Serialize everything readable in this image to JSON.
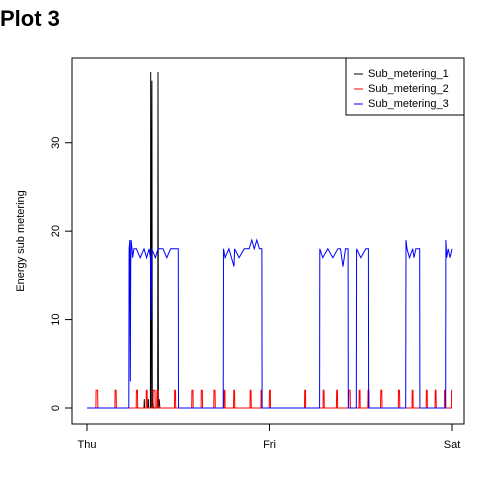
{
  "title": "Plot 3",
  "chart_data": {
    "type": "line",
    "ylabel": "Energy sub metering",
    "xlabel": "",
    "x_range": [
      0,
      2880
    ],
    "ylim": [
      0,
      38
    ],
    "x_ticks": [
      {
        "value": 0,
        "label": "Thu"
      },
      {
        "value": 1440,
        "label": "Fri"
      },
      {
        "value": 2880,
        "label": "Sat"
      }
    ],
    "y_ticks": [
      0,
      10,
      20,
      30
    ],
    "legend": {
      "position": "top-right"
    },
    "series": [
      {
        "name": "Sub_metering_1",
        "color": "#000000",
        "points": [
          [
            0,
            0
          ],
          [
            450,
            0
          ],
          [
            452,
            1
          ],
          [
            454,
            0
          ],
          [
            480,
            0
          ],
          [
            484,
            1
          ],
          [
            486,
            0
          ],
          [
            500,
            0
          ],
          [
            503,
            38
          ],
          [
            506,
            0
          ],
          [
            512,
            37
          ],
          [
            515,
            0
          ],
          [
            520,
            1
          ],
          [
            524,
            0
          ],
          [
            552,
            0
          ],
          [
            556,
            1
          ],
          [
            558,
            2
          ],
          [
            560,
            38
          ],
          [
            563,
            0
          ],
          [
            570,
            1
          ],
          [
            575,
            0
          ],
          [
            2880,
            0
          ]
        ]
      },
      {
        "name": "Sub_metering_2",
        "color": "#ff0000",
        "points": [
          [
            0,
            0
          ],
          [
            70,
            0
          ],
          [
            72,
            2
          ],
          [
            84,
            2
          ],
          [
            86,
            0
          ],
          [
            220,
            0
          ],
          [
            222,
            2
          ],
          [
            230,
            2
          ],
          [
            232,
            0
          ],
          [
            388,
            0
          ],
          [
            390,
            2
          ],
          [
            398,
            2
          ],
          [
            400,
            0
          ],
          [
            466,
            0
          ],
          [
            468,
            2
          ],
          [
            474,
            2
          ],
          [
            476,
            0
          ],
          [
            520,
            0
          ],
          [
            522,
            2
          ],
          [
            536,
            2
          ],
          [
            538,
            0
          ],
          [
            550,
            0
          ],
          [
            552,
            2
          ],
          [
            560,
            2
          ],
          [
            562,
            0
          ],
          [
            690,
            0
          ],
          [
            692,
            2
          ],
          [
            698,
            2
          ],
          [
            700,
            0
          ],
          [
            826,
            0
          ],
          [
            828,
            2
          ],
          [
            836,
            2
          ],
          [
            838,
            0
          ],
          [
            900,
            0
          ],
          [
            902,
            2
          ],
          [
            910,
            2
          ],
          [
            912,
            0
          ],
          [
            1000,
            0
          ],
          [
            1002,
            2
          ],
          [
            1010,
            2
          ],
          [
            1012,
            0
          ],
          [
            1080,
            0
          ],
          [
            1082,
            2
          ],
          [
            1088,
            2
          ],
          [
            1090,
            0
          ],
          [
            1156,
            0
          ],
          [
            1158,
            2
          ],
          [
            1164,
            2
          ],
          [
            1166,
            0
          ],
          [
            1286,
            0
          ],
          [
            1288,
            2
          ],
          [
            1294,
            2
          ],
          [
            1296,
            0
          ],
          [
            1372,
            0
          ],
          [
            1374,
            2
          ],
          [
            1380,
            2
          ],
          [
            1382,
            0
          ],
          [
            1438,
            0
          ],
          [
            1440,
            2
          ],
          [
            1446,
            2
          ],
          [
            1448,
            0
          ],
          [
            1716,
            0
          ],
          [
            1718,
            2
          ],
          [
            1724,
            2
          ],
          [
            1726,
            0
          ],
          [
            1862,
            0
          ],
          [
            1864,
            2
          ],
          [
            1870,
            2
          ],
          [
            1872,
            0
          ],
          [
            1968,
            0
          ],
          [
            1970,
            2
          ],
          [
            1976,
            2
          ],
          [
            1978,
            0
          ],
          [
            2064,
            0
          ],
          [
            2066,
            2
          ],
          [
            2076,
            2
          ],
          [
            2078,
            0
          ],
          [
            2146,
            0
          ],
          [
            2148,
            2
          ],
          [
            2154,
            2
          ],
          [
            2156,
            0
          ],
          [
            2216,
            0
          ],
          [
            2218,
            2
          ],
          [
            2224,
            2
          ],
          [
            2226,
            0
          ],
          [
            2316,
            0
          ],
          [
            2318,
            2
          ],
          [
            2326,
            2
          ],
          [
            2328,
            0
          ],
          [
            2456,
            0
          ],
          [
            2458,
            2
          ],
          [
            2466,
            2
          ],
          [
            2468,
            0
          ],
          [
            2564,
            0
          ],
          [
            2566,
            2
          ],
          [
            2572,
            2
          ],
          [
            2574,
            0
          ],
          [
            2676,
            0
          ],
          [
            2678,
            2
          ],
          [
            2684,
            2
          ],
          [
            2686,
            0
          ],
          [
            2746,
            0
          ],
          [
            2748,
            2
          ],
          [
            2754,
            2
          ],
          [
            2756,
            0
          ],
          [
            2820,
            0
          ],
          [
            2822,
            2
          ],
          [
            2828,
            2
          ],
          [
            2830,
            0
          ],
          [
            2875,
            0
          ],
          [
            2877,
            2
          ],
          [
            2880,
            2
          ]
        ]
      },
      {
        "name": "Sub_metering_3",
        "color": "#0000ff",
        "points": [
          [
            0,
            0
          ],
          [
            330,
            0
          ],
          [
            332,
            18
          ],
          [
            338,
            19
          ],
          [
            342,
            3
          ],
          [
            345,
            16
          ],
          [
            348,
            19
          ],
          [
            355,
            18
          ],
          [
            360,
            17
          ],
          [
            370,
            18
          ],
          [
            390,
            18
          ],
          [
            420,
            17
          ],
          [
            450,
            18
          ],
          [
            470,
            17
          ],
          [
            490,
            18
          ],
          [
            500,
            17
          ],
          [
            505,
            10
          ],
          [
            510,
            18
          ],
          [
            540,
            17
          ],
          [
            560,
            18
          ],
          [
            600,
            18
          ],
          [
            630,
            17
          ],
          [
            660,
            18
          ],
          [
            700,
            18
          ],
          [
            720,
            18
          ],
          [
            722,
            0
          ],
          [
            1075,
            0
          ],
          [
            1077,
            18
          ],
          [
            1090,
            17
          ],
          [
            1120,
            18
          ],
          [
            1160,
            16
          ],
          [
            1165,
            18
          ],
          [
            1200,
            17
          ],
          [
            1240,
            18
          ],
          [
            1280,
            18
          ],
          [
            1300,
            19
          ],
          [
            1320,
            18
          ],
          [
            1340,
            19
          ],
          [
            1360,
            18
          ],
          [
            1380,
            18
          ],
          [
            1382,
            0
          ],
          [
            1835,
            0
          ],
          [
            1837,
            18
          ],
          [
            1860,
            17
          ],
          [
            1900,
            18
          ],
          [
            1940,
            17
          ],
          [
            1980,
            18
          ],
          [
            2000,
            18
          ],
          [
            2020,
            16
          ],
          [
            2040,
            18
          ],
          [
            2060,
            18
          ],
          [
            2062,
            0
          ],
          [
            2125,
            0
          ],
          [
            2127,
            18
          ],
          [
            2160,
            17
          ],
          [
            2200,
            18
          ],
          [
            2220,
            18
          ],
          [
            2222,
            0
          ],
          [
            2515,
            0
          ],
          [
            2517,
            19
          ],
          [
            2525,
            18
          ],
          [
            2545,
            17
          ],
          [
            2570,
            18
          ],
          [
            2580,
            17
          ],
          [
            2595,
            18
          ],
          [
            2625,
            18
          ],
          [
            2627,
            0
          ],
          [
            2830,
            0
          ],
          [
            2832,
            19
          ],
          [
            2838,
            17
          ],
          [
            2850,
            18
          ],
          [
            2865,
            17
          ],
          [
            2880,
            18
          ]
        ]
      }
    ]
  }
}
